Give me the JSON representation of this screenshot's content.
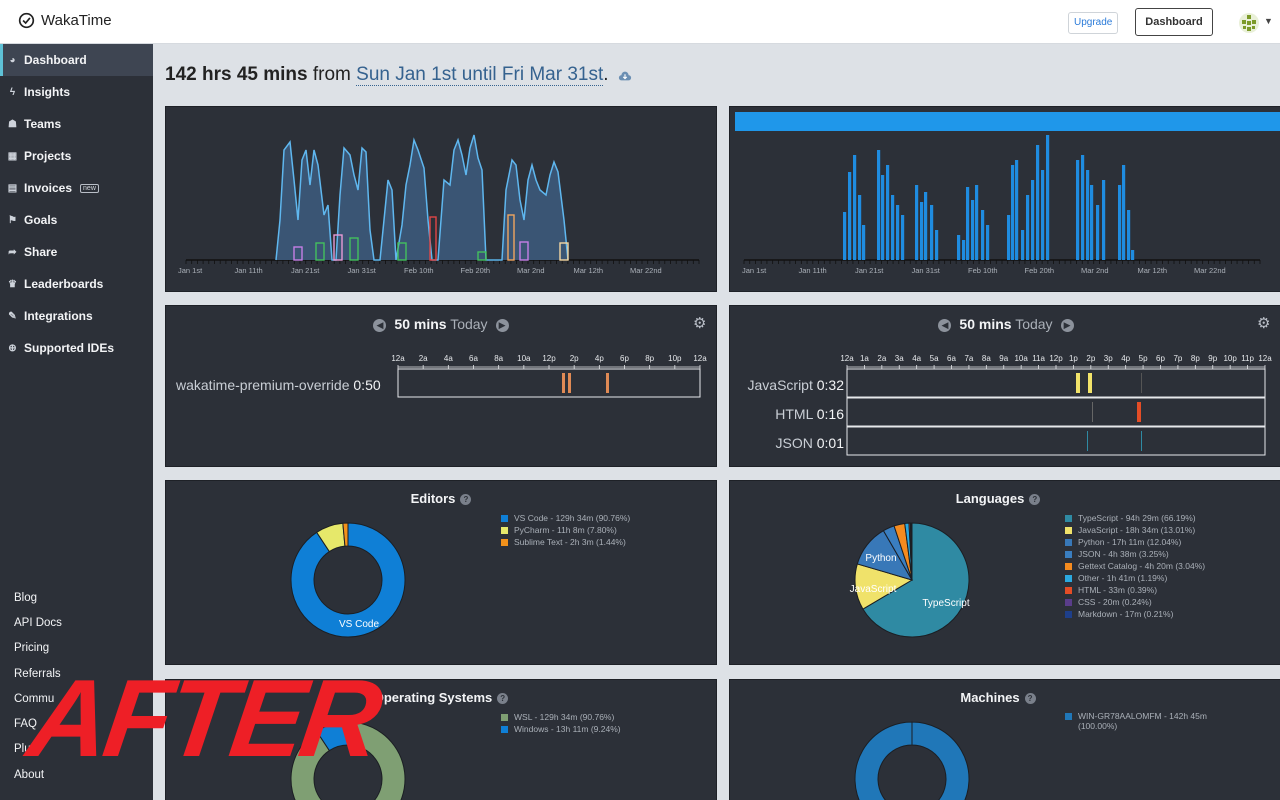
{
  "header": {
    "brand": "WakaTime",
    "upgrade_label": "Upgrade",
    "dashboard_label": "Dashboard"
  },
  "sidebar": {
    "items": [
      {
        "label": "Dashboard",
        "icon": "dashboard-icon"
      },
      {
        "label": "Insights",
        "icon": "bolt-icon"
      },
      {
        "label": "Teams",
        "icon": "users-icon"
      },
      {
        "label": "Projects",
        "icon": "grid-icon"
      },
      {
        "label": "Invoices",
        "icon": "invoice-icon",
        "badge": "new"
      },
      {
        "label": "Goals",
        "icon": "flag-icon"
      },
      {
        "label": "Share",
        "icon": "share-icon"
      },
      {
        "label": "Leaderboards",
        "icon": "trophy-icon"
      },
      {
        "label": "Integrations",
        "icon": "wrench-icon"
      },
      {
        "label": "Supported IDEs",
        "icon": "plus-circle-icon"
      }
    ],
    "footer_links": [
      "Blog",
      "API Docs",
      "Pricing",
      "Referrals",
      "Commu",
      "FAQ",
      "Plu",
      "About"
    ]
  },
  "summary": {
    "total": "142 hrs 45 mins",
    "from_word": "from",
    "range": "Sun Jan 1st until Fri Mar 31st",
    "period": "."
  },
  "activity_chart": {
    "x_ticks": [
      "Jan 1st",
      "Jan 11th",
      "Jan 21st",
      "Jan 31st",
      "Feb 10th",
      "Feb 20th",
      "Mar 2nd",
      "Mar 12th",
      "Mar 22nd"
    ]
  },
  "bar_chart": {
    "x_ticks": [
      "Jan 1st",
      "Jan 11th",
      "Jan 21st",
      "Jan 31st",
      "Feb 10th",
      "Feb 20th",
      "Mar 2nd",
      "Mar 12th",
      "Mar 22nd"
    ],
    "bar_color": "#1f8ce0"
  },
  "projects_today": {
    "amount": "50 mins",
    "label": "Today",
    "hours": [
      "12a",
      "2a",
      "4a",
      "6a",
      "8a",
      "10a",
      "12p",
      "2p",
      "4p",
      "6p",
      "8p",
      "10p",
      "12a"
    ],
    "rows": [
      {
        "name": "wakatime-premium-override",
        "time": "0:50"
      }
    ]
  },
  "languages_today": {
    "amount": "50 mins",
    "label": "Today",
    "hours": [
      "12a",
      "1a",
      "2a",
      "3a",
      "4a",
      "5a",
      "6a",
      "7a",
      "8a",
      "9a",
      "10a",
      "11a",
      "12p",
      "1p",
      "2p",
      "3p",
      "4p",
      "5p",
      "6p",
      "7p",
      "8p",
      "9p",
      "10p",
      "11p",
      "12a"
    ],
    "rows": [
      {
        "name": "JavaScript",
        "time": "0:32"
      },
      {
        "name": "HTML",
        "time": "0:16"
      },
      {
        "name": "JSON",
        "time": "0:01"
      }
    ]
  },
  "editors": {
    "title": "Editors",
    "center_label": "VS Code",
    "legend": [
      {
        "text": "VS Code - 129h 34m (90.76%)",
        "color": "#0f7fd6"
      },
      {
        "text": "PyCharm - 11h 8m (7.80%)",
        "color": "#e6e86a"
      },
      {
        "text": "Sublime Text - 2h 3m (1.44%)",
        "color": "#f2911b"
      }
    ]
  },
  "languages": {
    "title": "Languages",
    "labels": [
      "Python",
      "JavaScript",
      "TypeScript"
    ],
    "legend": [
      {
        "text": "TypeScript - 94h 29m (66.19%)",
        "color": "#2f8aa3"
      },
      {
        "text": "JavaScript - 18h 34m (13.01%)",
        "color": "#f0e26a"
      },
      {
        "text": "Python - 17h 11m (12.04%)",
        "color": "#3878b8"
      },
      {
        "text": "JSON - 4h 38m (3.25%)",
        "color": "#3a7ec0"
      },
      {
        "text": "Gettext Catalog - 4h 20m (3.04%)",
        "color": "#f58b1f"
      },
      {
        "text": "Other - 1h 41m (1.19%)",
        "color": "#2ba9e0"
      },
      {
        "text": "HTML - 33m (0.39%)",
        "color": "#e44d26"
      },
      {
        "text": "CSS - 20m (0.24%)",
        "color": "#5a3d8a"
      },
      {
        "text": "Markdown - 17m (0.21%)",
        "color": "#1e3f8a"
      }
    ]
  },
  "operating_systems": {
    "title": "Operating Systems",
    "legend": [
      {
        "text": "WSL - 129h 34m (90.76%)",
        "color": "#7f9f73"
      },
      {
        "text": "Windows - 13h 11m (9.24%)",
        "color": "#0f7fd6"
      }
    ]
  },
  "machines": {
    "title": "Machines",
    "legend": [
      {
        "text": "WIN-GR78AALOMFM - 142h 45m (100.00%)",
        "color": "#2077b8"
      }
    ]
  },
  "overlay": {
    "text": "AFTER"
  }
}
